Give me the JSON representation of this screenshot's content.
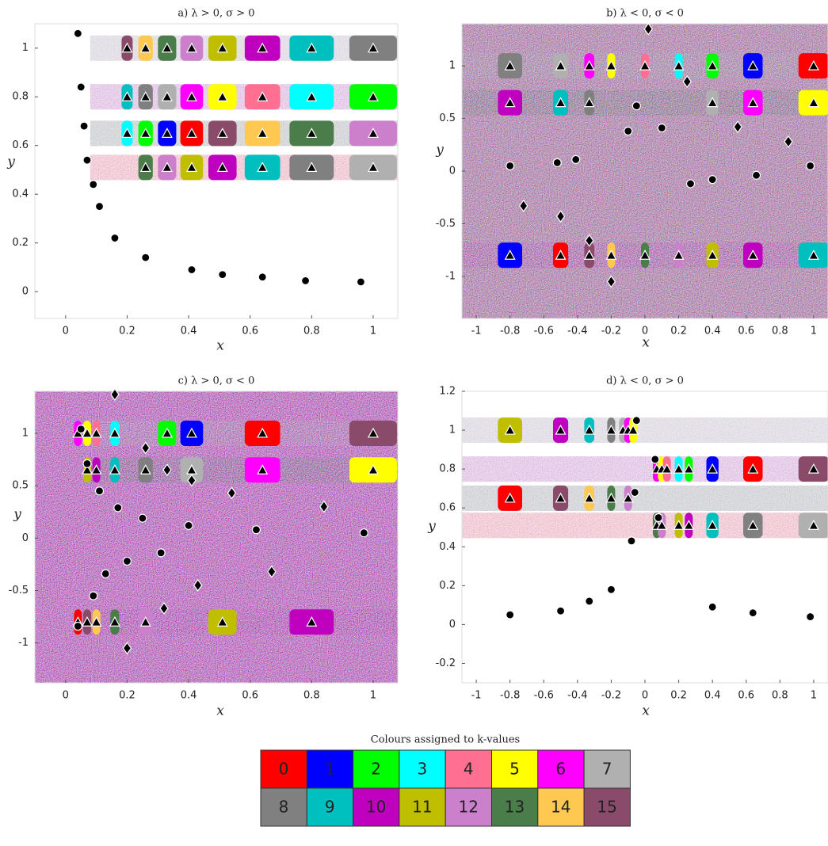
{
  "chart_data": [
    {
      "type": "scatter",
      "title": "a) λ > 0, σ > 0",
      "x_label": "x",
      "y_label": "y",
      "xlim": [
        -0.1,
        1.08
      ],
      "ylim": [
        -0.11,
        1.1
      ],
      "xticks": [
        0,
        0.2,
        0.4,
        0.6,
        0.8,
        1
      ],
      "yticks": [
        0,
        0.2,
        0.4,
        0.6,
        0.8,
        1
      ],
      "series": [
        {
          "marker": "triangle",
          "x": [
            0.2,
            0.26,
            0.33,
            0.41,
            0.51,
            0.64,
            0.8,
            1,
            0.2,
            0.26,
            0.33,
            0.41,
            0.51,
            0.64,
            0.8,
            1,
            0.2,
            0.26,
            0.33,
            0.41,
            0.51,
            0.64,
            0.8,
            1,
            0.26,
            0.33,
            0.41,
            0.51,
            0.64,
            0.8,
            1
          ],
          "y": [
            1,
            1,
            1,
            1,
            1,
            1,
            1,
            1,
            0.8,
            0.8,
            0.8,
            0.8,
            0.8,
            0.8,
            0.8,
            0.8,
            0.65,
            0.65,
            0.65,
            0.65,
            0.65,
            0.65,
            0.65,
            0.65,
            0.51,
            0.51,
            0.51,
            0.51,
            0.51,
            0.51,
            0.51
          ]
        },
        {
          "marker": "circle",
          "x": [
            0.04,
            0.05,
            0.06,
            0.07,
            0.09,
            0.11,
            0.16,
            0.26,
            0.41,
            0.51,
            0.64,
            0.78,
            0.96
          ],
          "y": [
            1.06,
            0.84,
            0.68,
            0.54,
            0.44,
            0.35,
            0.22,
            0.14,
            0.09,
            0.07,
            0.06,
            0.045,
            0.04
          ]
        }
      ]
    },
    {
      "type": "scatter",
      "title": "b) λ < 0, σ < 0",
      "x_label": "x",
      "y_label": "y",
      "xlim": [
        -1.085,
        1.085
      ],
      "ylim": [
        -1.4,
        1.4
      ],
      "xticks": [
        -1,
        -0.8,
        -0.6,
        -0.4,
        -0.2,
        0,
        0.2,
        0.4,
        0.6,
        0.8,
        1
      ],
      "yticks": [
        -1,
        -0.5,
        0,
        0.5,
        1
      ],
      "series": [
        {
          "marker": "triangle",
          "x": [
            -0.8,
            -0.5,
            -0.33,
            -0.2,
            0,
            0.2,
            0.4,
            0.64,
            1,
            -0.8,
            -0.5,
            -0.33,
            -0.2,
            0,
            0.2,
            0.4,
            0.64,
            1,
            -0.8,
            -0.5,
            -0.33,
            0.4,
            0.64,
            1
          ],
          "y": [
            1,
            1,
            1,
            1,
            1,
            1,
            1,
            1,
            1,
            -0.8,
            -0.8,
            -0.8,
            -0.8,
            -0.8,
            -0.8,
            -0.8,
            -0.8,
            -0.8,
            0.65,
            0.65,
            0.65,
            0.65,
            0.65,
            0.65
          ]
        },
        {
          "marker": "circle",
          "x": [
            -0.05,
            -0.8,
            -0.52,
            -0.41,
            -0.1,
            0.1,
            0.27,
            0.4,
            0.66,
            0.98
          ],
          "y": [
            0.62,
            0.05,
            0.08,
            0.11,
            0.38,
            0.41,
            -0.12,
            -0.08,
            -0.04,
            0.05
          ]
        },
        {
          "marker": "diamond",
          "x": [
            0.02,
            0.25,
            -0.72,
            -0.5,
            -0.33,
            0.85,
            0.55,
            -0.2
          ],
          "y": [
            1.35,
            0.85,
            -0.33,
            -0.43,
            -0.66,
            0.28,
            0.42,
            -1.05
          ]
        }
      ]
    },
    {
      "type": "scatter",
      "title": "c) λ > 0, σ < 0",
      "x_label": "x",
      "y_label": "y",
      "xlim": [
        -0.1,
        1.08
      ],
      "ylim": [
        -1.38,
        1.4
      ],
      "xticks": [
        0,
        0.2,
        0.4,
        0.6,
        0.8,
        1
      ],
      "yticks": [
        -1,
        -0.5,
        0,
        0.5,
        1
      ],
      "series": [
        {
          "marker": "triangle",
          "x": [
            0.04,
            0.07,
            0.1,
            0.16,
            0.33,
            0.41,
            0.64,
            1,
            0.04,
            0.07,
            0.1,
            0.16,
            0.26,
            0.51,
            0.8,
            0.07,
            0.1,
            0.16,
            0.26,
            0.41,
            0.64,
            1
          ],
          "y": [
            1,
            1,
            1,
            1,
            1,
            1,
            1,
            1,
            -0.8,
            -0.8,
            -0.8,
            -0.8,
            -0.8,
            -0.8,
            -0.8,
            0.65,
            0.65,
            0.65,
            0.65,
            0.65,
            0.65,
            0.65
          ]
        },
        {
          "marker": "circle",
          "x": [
            0.05,
            0.07,
            0.11,
            0.17,
            0.25,
            0.4,
            0.62,
            0.97,
            0.04,
            0.09,
            0.13,
            0.2,
            0.31
          ],
          "y": [
            1.04,
            0.71,
            0.45,
            0.29,
            0.19,
            0.12,
            0.08,
            0.05,
            -0.84,
            -0.55,
            -0.34,
            -0.22,
            -0.14
          ]
        },
        {
          "marker": "diamond",
          "x": [
            0.16,
            0.26,
            0.33,
            0.41,
            0.54,
            0.84,
            0.67,
            0.43,
            0.32,
            0.2
          ],
          "y": [
            1.37,
            0.86,
            0.65,
            0.55,
            0.43,
            0.3,
            -0.32,
            -0.45,
            -0.67,
            -1.05
          ]
        }
      ]
    },
    {
      "type": "scatter",
      "title": "d) λ < 0, σ > 0",
      "x_label": "x",
      "y_label": "y",
      "xlim": [
        -1.085,
        1.085
      ],
      "ylim": [
        -0.3,
        1.2
      ],
      "xticks": [
        -1,
        -0.8,
        -0.6,
        -0.4,
        -0.2,
        0,
        0.2,
        0.4,
        0.6,
        0.8,
        1
      ],
      "yticks": [
        -0.2,
        0,
        0.2,
        0.4,
        0.6,
        0.8,
        1,
        1.2
      ],
      "series": [
        {
          "marker": "triangle",
          "x": [
            -0.8,
            -0.5,
            -0.33,
            -0.2,
            -0.13,
            -0.1,
            -0.07,
            0.07,
            0.1,
            0.13,
            0.2,
            0.26,
            0.4,
            0.64,
            1,
            -0.8,
            -0.5,
            -0.33,
            -0.2,
            -0.1,
            0.07,
            0.1,
            0.2,
            0.26,
            0.4,
            0.64,
            1
          ],
          "y": [
            1,
            1,
            1,
            1,
            1,
            1,
            1,
            0.8,
            0.8,
            0.8,
            0.8,
            0.8,
            0.8,
            0.8,
            0.8,
            0.65,
            0.65,
            0.65,
            0.65,
            0.65,
            0.51,
            0.51,
            0.51,
            0.51,
            0.51,
            0.51,
            0.51
          ]
        },
        {
          "marker": "circle",
          "x": [
            -0.05,
            0.06,
            -0.06,
            0.08,
            -0.08,
            -0.8,
            -0.5,
            -0.33,
            -0.2,
            0.98,
            0.64,
            0.4
          ],
          "y": [
            1.05,
            0.85,
            0.68,
            0.55,
            0.43,
            0.05,
            0.07,
            0.12,
            0.18,
            0.04,
            0.06,
            0.09
          ]
        }
      ]
    }
  ],
  "legend_table": {
    "title": "Colours assigned to k-values",
    "cells": [
      {
        "label": "0",
        "color": "#ff0000"
      },
      {
        "label": "1",
        "color": "#0000ff"
      },
      {
        "label": "2",
        "color": "#00ff00"
      },
      {
        "label": "3",
        "color": "#00ffff"
      },
      {
        "label": "4",
        "color": "#ff6f91"
      },
      {
        "label": "5",
        "color": "#ffff00"
      },
      {
        "label": "6",
        "color": "#ff00ff"
      },
      {
        "label": "7",
        "color": "#b0b0b0"
      },
      {
        "label": "8",
        "color": "#808080"
      },
      {
        "label": "9",
        "color": "#00bfbf"
      },
      {
        "label": "10",
        "color": "#bf00bf"
      },
      {
        "label": "11",
        "color": "#bfbf00"
      },
      {
        "label": "12",
        "color": "#cc80cc"
      },
      {
        "label": "13",
        "color": "#4a7d4a"
      },
      {
        "label": "14",
        "color": "#ffc850"
      },
      {
        "label": "15",
        "color": "#8a4a6a"
      }
    ]
  }
}
